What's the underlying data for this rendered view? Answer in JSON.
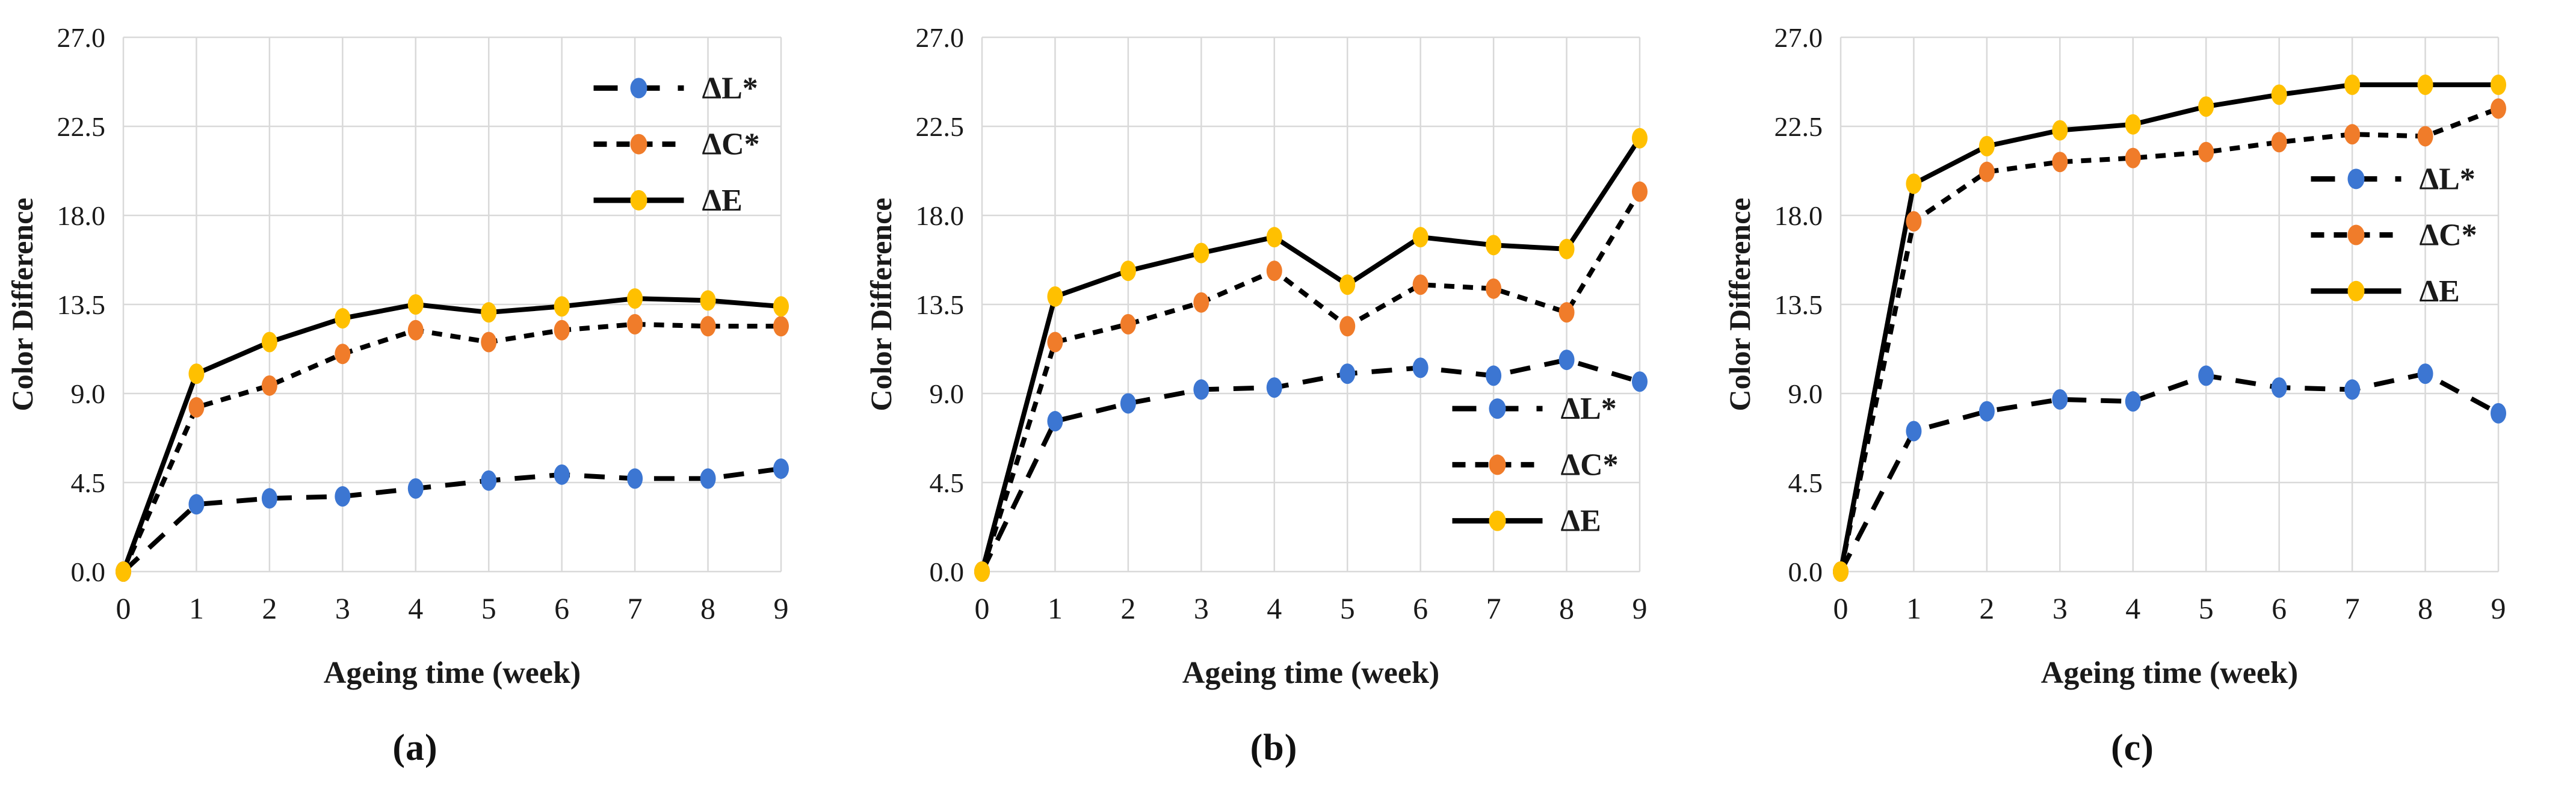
{
  "figure": {
    "background": "#ffffff",
    "text_color": "#1a1a1a",
    "grid_color": "#d9d9d9",
    "line_color": "#000000"
  },
  "chart_data": [
    {
      "type": "line",
      "caption": "(a)",
      "xlabel": "Ageing time (week)",
      "ylabel": "Color Difference",
      "x": [
        0,
        1,
        2,
        3,
        4,
        5,
        6,
        7,
        8,
        9
      ],
      "ylim": [
        0,
        27
      ],
      "yticks": [
        "0.0",
        "4.5",
        "9.0",
        "13.5",
        "18.0",
        "22.5",
        "27.0"
      ],
      "grid": true,
      "legend_position": "top-right",
      "series": [
        {
          "name": "ΔL*",
          "marker_color": "#3c76d2",
          "dash": "long",
          "values": [
            0,
            3.4,
            3.7,
            3.8,
            4.2,
            4.6,
            4.9,
            4.7,
            4.7,
            5.2
          ]
        },
        {
          "name": "ΔC*",
          "marker_color": "#f07c2a",
          "dash": "short",
          "values": [
            0,
            8.3,
            9.4,
            11.0,
            12.2,
            11.6,
            12.2,
            12.5,
            12.4,
            12.4
          ]
        },
        {
          "name": "ΔE",
          "marker_color": "#ffc000",
          "dash": "solid",
          "values": [
            0,
            10.0,
            11.6,
            12.8,
            13.5,
            13.1,
            13.4,
            13.8,
            13.7,
            13.4
          ]
        }
      ]
    },
    {
      "type": "line",
      "caption": "(b)",
      "xlabel": "Ageing time (week)",
      "ylabel": "Color Difference",
      "x": [
        0,
        1,
        2,
        3,
        4,
        5,
        6,
        7,
        8,
        9
      ],
      "ylim": [
        0,
        27
      ],
      "yticks": [
        "0.0",
        "4.5",
        "9.0",
        "13.5",
        "18.0",
        "22.5",
        "27.0"
      ],
      "grid": true,
      "legend_position": "bottom-right",
      "series": [
        {
          "name": "ΔL*",
          "marker_color": "#3c76d2",
          "dash": "long",
          "values": [
            0,
            7.6,
            8.5,
            9.2,
            9.3,
            10.0,
            10.3,
            9.9,
            10.7,
            9.6
          ]
        },
        {
          "name": "ΔC*",
          "marker_color": "#f07c2a",
          "dash": "short",
          "values": [
            0,
            11.6,
            12.5,
            13.6,
            15.2,
            12.4,
            14.5,
            14.3,
            13.1,
            19.2
          ]
        },
        {
          "name": "ΔE",
          "marker_color": "#ffc000",
          "dash": "solid",
          "values": [
            0,
            13.9,
            15.2,
            16.1,
            16.9,
            14.5,
            16.9,
            16.5,
            16.3,
            21.9
          ]
        }
      ]
    },
    {
      "type": "line",
      "caption": "(c)",
      "xlabel": "Ageing time (week)",
      "ylabel": "Color Difference",
      "x": [
        0,
        1,
        2,
        3,
        4,
        5,
        6,
        7,
        8,
        9
      ],
      "ylim": [
        0,
        27
      ],
      "yticks": [
        "0.0",
        "4.5",
        "9.0",
        "13.5",
        "18.0",
        "22.5",
        "27.0"
      ],
      "grid": true,
      "legend_position": "middle-right",
      "series": [
        {
          "name": "ΔL*",
          "marker_color": "#3c76d2",
          "dash": "long",
          "values": [
            0,
            7.1,
            8.1,
            8.7,
            8.6,
            9.9,
            9.3,
            9.2,
            10.0,
            8.0
          ]
        },
        {
          "name": "ΔC*",
          "marker_color": "#f07c2a",
          "dash": "short",
          "values": [
            0,
            17.7,
            20.2,
            20.7,
            20.9,
            21.2,
            21.7,
            22.1,
            22.0,
            23.4
          ]
        },
        {
          "name": "ΔE",
          "marker_color": "#ffc000",
          "dash": "solid",
          "values": [
            0,
            19.6,
            21.5,
            22.3,
            22.6,
            23.5,
            24.1,
            24.6,
            24.6,
            24.6
          ]
        }
      ]
    }
  ]
}
